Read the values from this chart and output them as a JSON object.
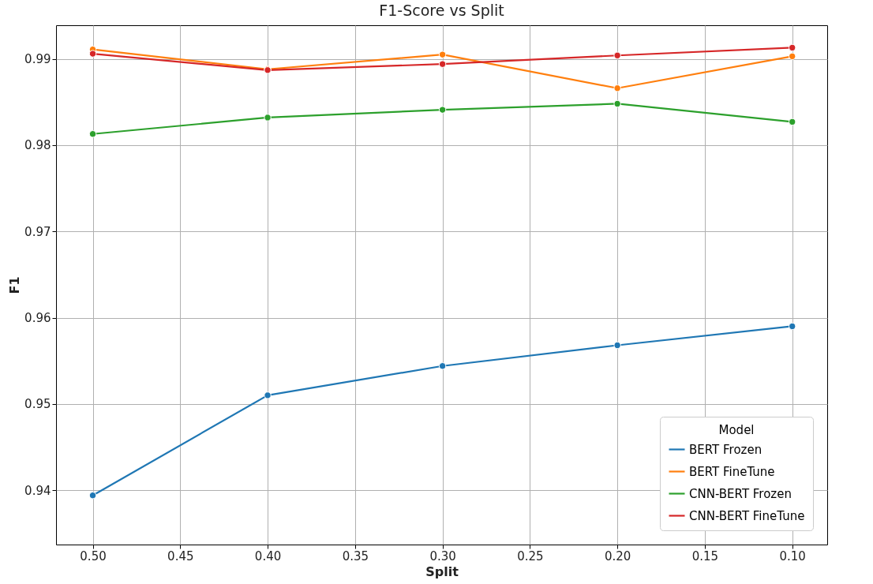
{
  "chart_data": {
    "type": "line",
    "title": "F1-Score vs Split",
    "xlabel": "Split",
    "ylabel": "F1",
    "legend_title": "Model",
    "x": [
      0.5,
      0.4,
      0.3,
      0.2,
      0.1
    ],
    "series": [
      {
        "name": "BERT Frozen",
        "color": "#1f77b4",
        "values": [
          0.9394,
          0.951,
          0.9544,
          0.9568,
          0.959
        ]
      },
      {
        "name": "BERT FineTune",
        "color": "#ff7f0e",
        "values": [
          0.9911,
          0.9888,
          0.9905,
          0.9866,
          0.9903
        ]
      },
      {
        "name": "CNN-BERT Frozen",
        "color": "#2ca02c",
        "values": [
          0.9813,
          0.9832,
          0.9841,
          0.9848,
          0.9827
        ]
      },
      {
        "name": "CNN-BERT FineTune",
        "color": "#d62728",
        "values": [
          0.9906,
          0.9887,
          0.9894,
          0.9904,
          0.9913
        ]
      }
    ],
    "xlim": [
      0.521,
      0.08
    ],
    "xticks": [
      {
        "value": 0.5,
        "label": "0.50"
      },
      {
        "value": 0.45,
        "label": "0.45"
      },
      {
        "value": 0.4,
        "label": "0.40"
      },
      {
        "value": 0.35,
        "label": "0.35"
      },
      {
        "value": 0.3,
        "label": "0.30"
      },
      {
        "value": 0.25,
        "label": "0.25"
      },
      {
        "value": 0.2,
        "label": "0.20"
      },
      {
        "value": 0.15,
        "label": "0.15"
      },
      {
        "value": 0.1,
        "label": "0.10"
      }
    ],
    "ylim": [
      0.9337,
      0.9939
    ],
    "yticks": [
      0.94,
      0.95,
      0.96,
      0.97,
      0.98,
      0.99
    ],
    "grid": true,
    "legend": "bottom right",
    "marker": "circle",
    "line_style": "solid"
  }
}
